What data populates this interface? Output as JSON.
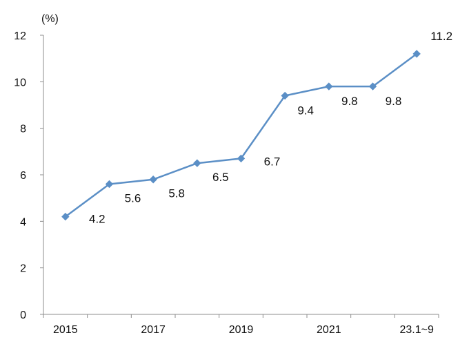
{
  "chart_data": {
    "type": "line",
    "title": "",
    "xlabel": "",
    "ylabel": "",
    "y_unit": "(%)",
    "ylim": [
      0,
      12
    ],
    "y_ticks": [
      0,
      2,
      4,
      6,
      8,
      10,
      12
    ],
    "grid": false,
    "legend": "none",
    "line_color": "#5b8fc6",
    "categories": [
      "2015",
      "2016",
      "2017",
      "2018",
      "2019",
      "2020",
      "2021",
      "2022",
      "23.1~9"
    ],
    "x_tick_labels": [
      "2015",
      "",
      "2017",
      "",
      "2019",
      "",
      "2021",
      "",
      "23.1~9"
    ],
    "series": [
      {
        "values": [
          4.2,
          5.6,
          5.8,
          6.5,
          6.7,
          9.4,
          9.8,
          9.8,
          11.2
        ],
        "labels": [
          "4.2",
          "5.6",
          "5.8",
          "6.5",
          "6.7",
          "9.4",
          "9.8",
          "9.8",
          "11.2"
        ]
      }
    ]
  }
}
